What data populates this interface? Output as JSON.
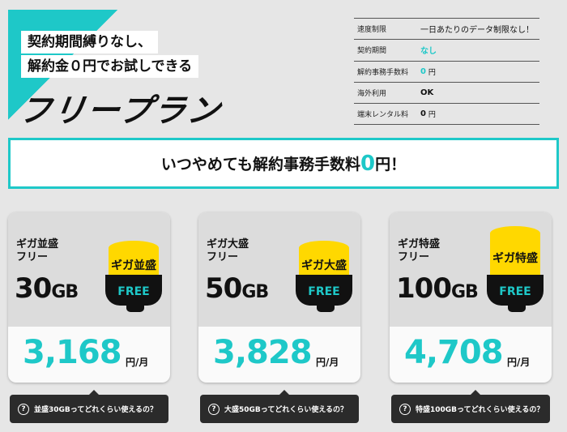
{
  "hero": {
    "line1": "契約期間縛りなし、",
    "line2": "解約金０円でお試しできる",
    "logo": "フリープラン"
  },
  "specs": [
    {
      "label": "速度制限",
      "value": "一日あたりのデータ制限なし！",
      "unit": ""
    },
    {
      "label": "契約期間",
      "value": "なし",
      "unit": ""
    },
    {
      "label": "解約事務手数料",
      "value": "0",
      "unit": "円"
    },
    {
      "label": "海外利用",
      "value": "OK",
      "unit": ""
    },
    {
      "label": "端末レンタル料",
      "value": "0",
      "unit": "円"
    }
  ],
  "banner": {
    "pre": "いつやめても解約事務手数料",
    "zero": "0",
    "post": "円！"
  },
  "plans": [
    {
      "name1": "ギガ並盛",
      "name2": "フリー",
      "gb": "30",
      "gb_unit": "GB",
      "badge": "ギガ並盛",
      "free": "FREE",
      "price": "3,168",
      "unit": "円/月",
      "tip": "並盛30GBってどれくらい使えるの？"
    },
    {
      "name1": "ギガ大盛",
      "name2": "フリー",
      "gb": "50",
      "gb_unit": "GB",
      "badge": "ギガ大盛",
      "free": "FREE",
      "price": "3,828",
      "unit": "円/月",
      "tip": "大盛50GBってどれくらい使えるの？"
    },
    {
      "name1": "ギガ特盛",
      "name2": "フリー",
      "gb": "100",
      "gb_unit": "GB",
      "badge": "ギガ特盛",
      "free": "FREE",
      "price": "4,708",
      "unit": "円/月",
      "tip": "特盛100GBってどれくらい使えるの？"
    }
  ],
  "colors": {
    "accent": "#1ec8c8",
    "badge": "#ffd800"
  }
}
